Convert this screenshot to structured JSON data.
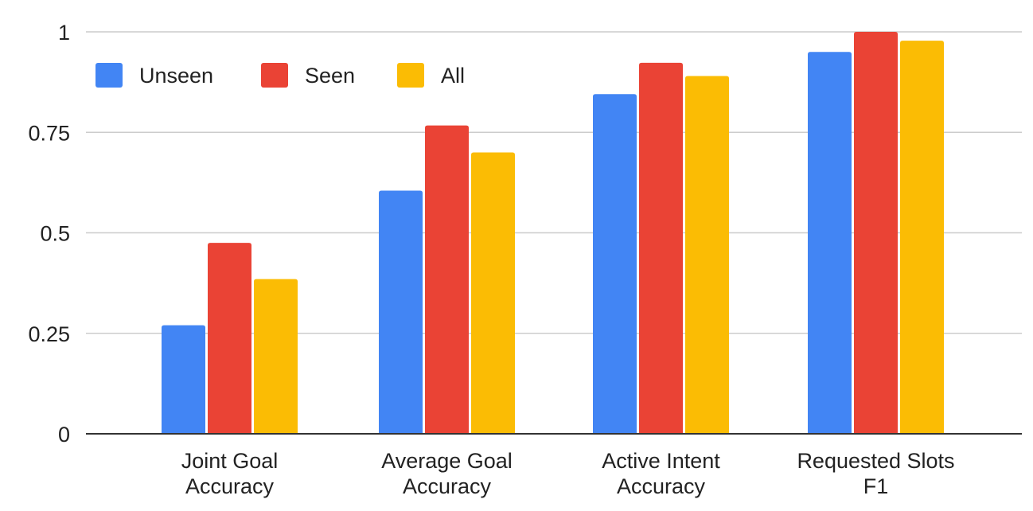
{
  "chart_data": {
    "type": "bar",
    "title": "",
    "xlabel": "",
    "ylabel": "",
    "categories": [
      [
        "Joint Goal",
        "Accuracy"
      ],
      [
        "Average Goal",
        "Accuracy"
      ],
      [
        "Active Intent",
        "Accuracy"
      ],
      [
        "Requested Slots",
        "F1"
      ]
    ],
    "series": [
      {
        "name": "Unseen",
        "color": "#4285F4",
        "values": [
          0.27,
          0.605,
          0.845,
          0.95
        ]
      },
      {
        "name": "Seen",
        "color": "#EA4335",
        "values": [
          0.475,
          0.767,
          0.923,
          1.0
        ]
      },
      {
        "name": "All",
        "color": "#FBBC04",
        "values": [
          0.385,
          0.7,
          0.89,
          0.978
        ]
      }
    ],
    "ylim": [
      0,
      1
    ],
    "yticks": [
      "0",
      "0.25",
      "0.5",
      "0.75",
      "1"
    ],
    "grid": true,
    "legend": "top-left"
  }
}
